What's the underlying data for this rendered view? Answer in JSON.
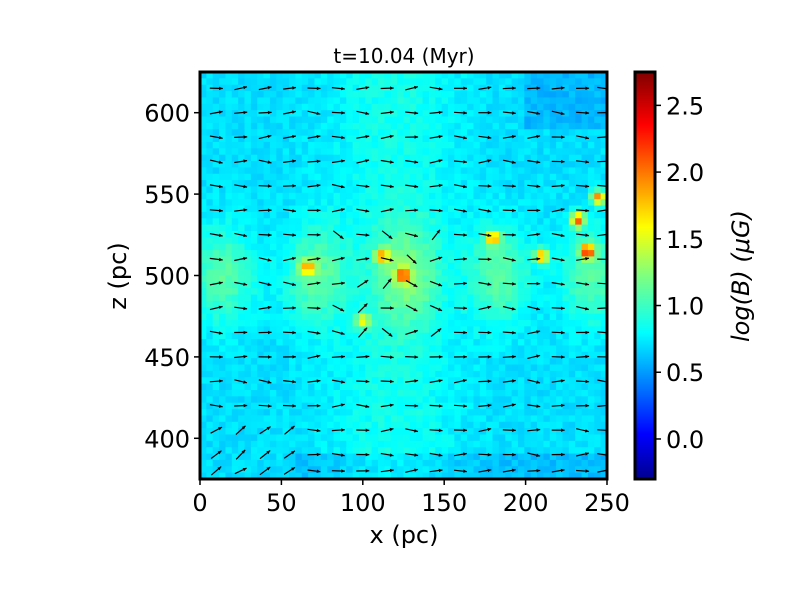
{
  "chart_data": {
    "type": "heatmap",
    "title": "t=10.04 (Myr)",
    "xlabel": "x (pc)",
    "ylabel": "z (pc)",
    "xlim": [
      0,
      250
    ],
    "ylim": [
      375,
      625
    ],
    "x_ticks": [
      "0",
      "50",
      "100",
      "150",
      "200",
      "250"
    ],
    "x_tick_values": [
      0,
      50,
      100,
      150,
      200,
      250
    ],
    "y_ticks": [
      "400",
      "450",
      "500",
      "550",
      "600"
    ],
    "y_tick_values": [
      400,
      450,
      500,
      550,
      600
    ],
    "colorbar": {
      "label": "log(B) (μG)",
      "range": [
        -0.3,
        2.75
      ],
      "ticks": [
        "0.0",
        "0.5",
        "1.0",
        "1.5",
        "2.0",
        "2.5"
      ],
      "tick_values": [
        0.0,
        0.5,
        1.0,
        1.5,
        2.0,
        2.5
      ],
      "colormap": "jet"
    },
    "field_description_values": {
      "background_level": 0.75,
      "filament_level": 1.2,
      "hotspot_peak": 2.2
    },
    "hotspots": [
      {
        "x": 125,
        "z": 500,
        "v": 2.0
      },
      {
        "x": 112,
        "z": 512,
        "v": 1.8
      },
      {
        "x": 180,
        "z": 523,
        "v": 1.9
      },
      {
        "x": 210,
        "z": 512,
        "v": 2.0
      },
      {
        "x": 232,
        "z": 534,
        "v": 2.2
      },
      {
        "x": 238,
        "z": 515,
        "v": 2.3
      },
      {
        "x": 245,
        "z": 548,
        "v": 2.2
      },
      {
        "x": 66,
        "z": 505,
        "v": 1.8
      },
      {
        "x": 100,
        "z": 472,
        "v": 1.6
      }
    ],
    "vector_field": {
      "x_positions": [
        10,
        25,
        40,
        55,
        70,
        85,
        100,
        115,
        130,
        145,
        160,
        175,
        190,
        205,
        220,
        235,
        248
      ],
      "z_positions": [
        615,
        600,
        585,
        570,
        555,
        540,
        525,
        510,
        495,
        480,
        465,
        450,
        435,
        420,
        405,
        390,
        380
      ],
      "colors": {
        "arrow": "#000000"
      }
    }
  }
}
